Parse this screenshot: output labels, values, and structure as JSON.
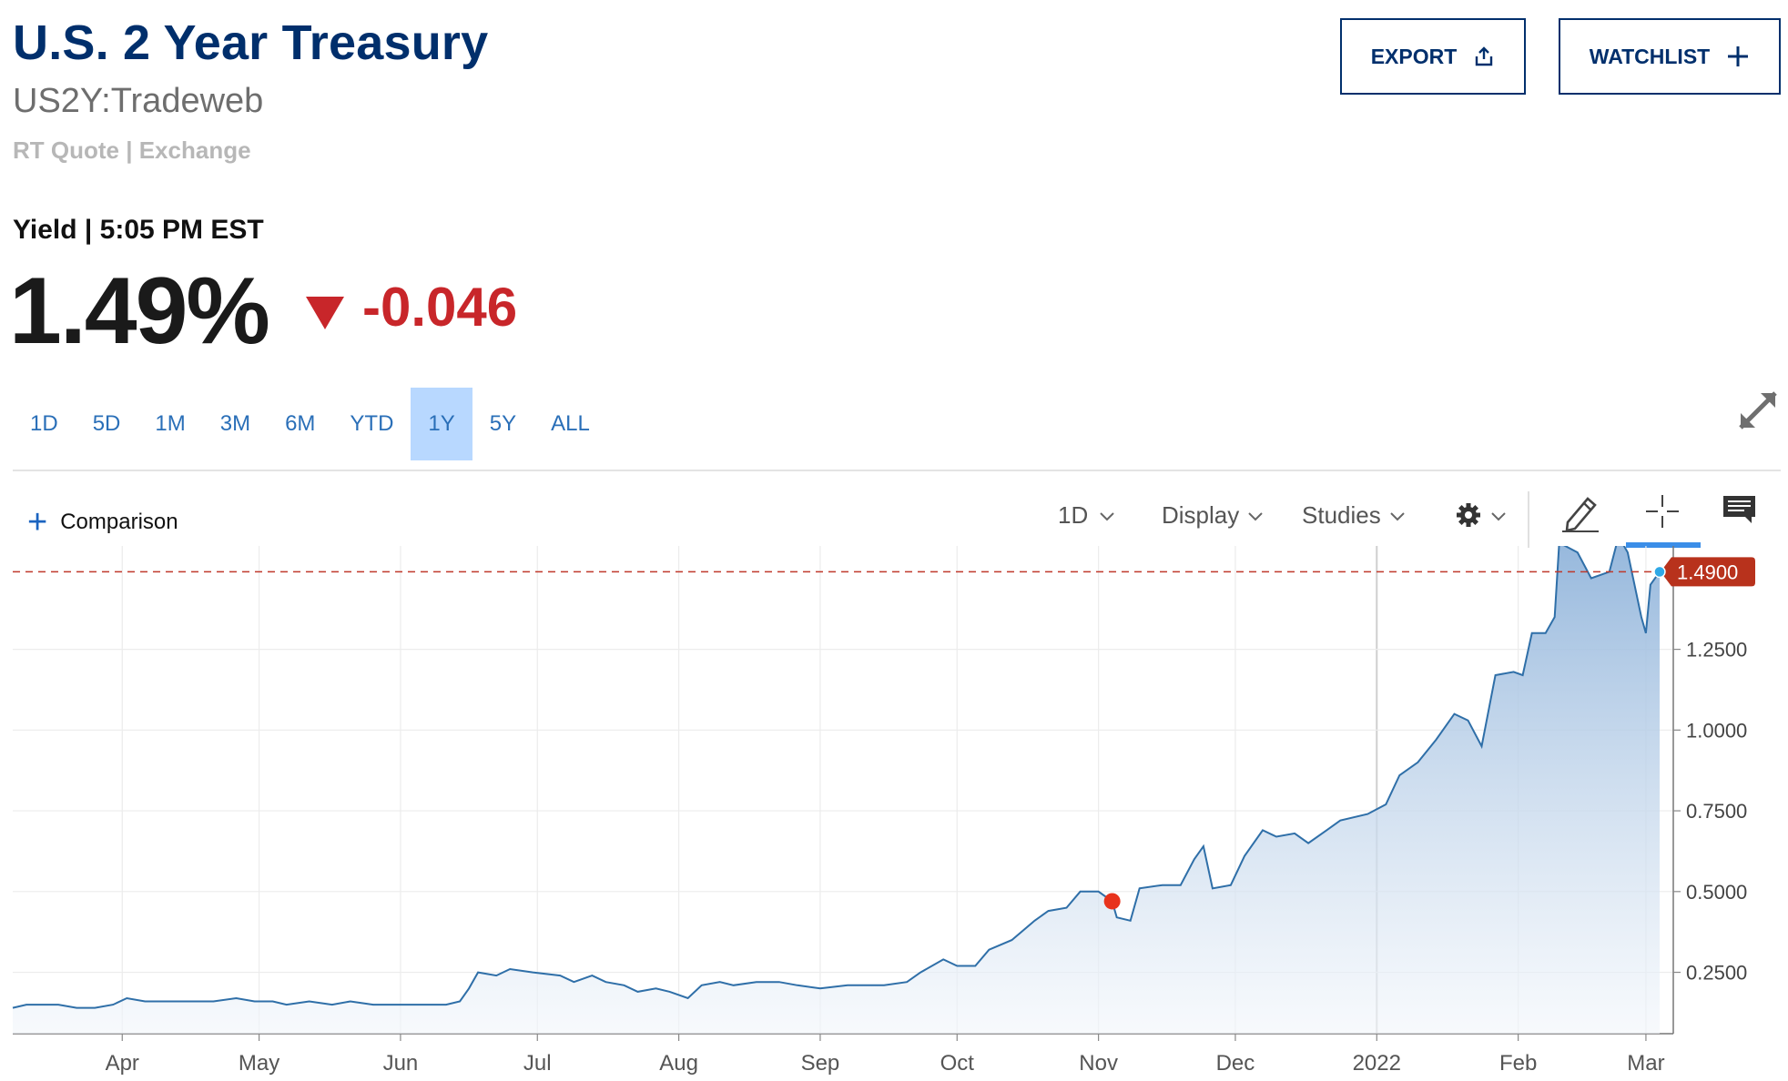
{
  "header": {
    "title": "U.S. 2 Year Treasury",
    "symbol": "US2Y:Tradeweb",
    "quote_source": "RT Quote | Exchange",
    "export_label": "EXPORT",
    "watchlist_label": "WATCHLIST"
  },
  "quote": {
    "label": "Yield | 5:05 PM EST",
    "value": "1.49%",
    "change": "-0.046"
  },
  "ranges": [
    "1D",
    "5D",
    "1M",
    "3M",
    "6M",
    "YTD",
    "1Y",
    "5Y",
    "ALL"
  ],
  "active_range": "1Y",
  "toolbar": {
    "comparison_label": "Comparison",
    "interval_label": "1D",
    "display_label": "Display",
    "studies_label": "Studies"
  },
  "colors": {
    "brand": "#002f6c",
    "negative": "#c8262a",
    "line": "#2f6fa8",
    "link": "#2a6fb8"
  },
  "chart_data": {
    "type": "area",
    "title": "",
    "xlabel": "",
    "ylabel": "",
    "x_ticks": [
      "Apr",
      "May",
      "Jun",
      "Jul",
      "Aug",
      "Sep",
      "Oct",
      "Nov",
      "Dec",
      "2022",
      "Feb",
      "Mar"
    ],
    "y_ticks": [
      "0.2500",
      "0.5000",
      "0.7500",
      "1.0000",
      "1.2500"
    ],
    "ylim": [
      0.06,
      1.57
    ],
    "grid": true,
    "last_value_label": "1.4900",
    "last_value": 1.49,
    "event_marker": {
      "x": "2021-11-04",
      "y": 0.47
    },
    "series": [
      {
        "points": [
          [
            "2021-03-08",
            0.14
          ],
          [
            "2021-03-11",
            0.15
          ],
          [
            "2021-03-15",
            0.15
          ],
          [
            "2021-03-18",
            0.15
          ],
          [
            "2021-03-22",
            0.14
          ],
          [
            "2021-03-26",
            0.14
          ],
          [
            "2021-03-30",
            0.15
          ],
          [
            "2021-04-02",
            0.17
          ],
          [
            "2021-04-06",
            0.16
          ],
          [
            "2021-04-09",
            0.16
          ],
          [
            "2021-04-14",
            0.16
          ],
          [
            "2021-04-16",
            0.16
          ],
          [
            "2021-04-21",
            0.16
          ],
          [
            "2021-04-26",
            0.17
          ],
          [
            "2021-04-30",
            0.16
          ],
          [
            "2021-05-04",
            0.16
          ],
          [
            "2021-05-07",
            0.15
          ],
          [
            "2021-05-12",
            0.16
          ],
          [
            "2021-05-17",
            0.15
          ],
          [
            "2021-05-21",
            0.16
          ],
          [
            "2021-05-26",
            0.15
          ],
          [
            "2021-06-01",
            0.15
          ],
          [
            "2021-06-07",
            0.15
          ],
          [
            "2021-06-11",
            0.15
          ],
          [
            "2021-06-14",
            0.16
          ],
          [
            "2021-06-16",
            0.2
          ],
          [
            "2021-06-18",
            0.25
          ],
          [
            "2021-06-22",
            0.24
          ],
          [
            "2021-06-25",
            0.26
          ],
          [
            "2021-06-30",
            0.25
          ],
          [
            "2021-07-06",
            0.24
          ],
          [
            "2021-07-09",
            0.22
          ],
          [
            "2021-07-13",
            0.24
          ],
          [
            "2021-07-16",
            0.22
          ],
          [
            "2021-07-20",
            0.21
          ],
          [
            "2021-07-23",
            0.19
          ],
          [
            "2021-07-27",
            0.2
          ],
          [
            "2021-07-30",
            0.19
          ],
          [
            "2021-08-03",
            0.17
          ],
          [
            "2021-08-06",
            0.21
          ],
          [
            "2021-08-10",
            0.22
          ],
          [
            "2021-08-13",
            0.21
          ],
          [
            "2021-08-18",
            0.22
          ],
          [
            "2021-08-23",
            0.22
          ],
          [
            "2021-08-27",
            0.21
          ],
          [
            "2021-09-01",
            0.2
          ],
          [
            "2021-09-07",
            0.21
          ],
          [
            "2021-09-10",
            0.21
          ],
          [
            "2021-09-15",
            0.21
          ],
          [
            "2021-09-20",
            0.22
          ],
          [
            "2021-09-23",
            0.25
          ],
          [
            "2021-09-28",
            0.29
          ],
          [
            "2021-10-01",
            0.27
          ],
          [
            "2021-10-05",
            0.27
          ],
          [
            "2021-10-08",
            0.32
          ],
          [
            "2021-10-13",
            0.35
          ],
          [
            "2021-10-18",
            0.41
          ],
          [
            "2021-10-21",
            0.44
          ],
          [
            "2021-10-25",
            0.45
          ],
          [
            "2021-10-28",
            0.5
          ],
          [
            "2021-11-01",
            0.5
          ],
          [
            "2021-11-04",
            0.47
          ],
          [
            "2021-11-05",
            0.42
          ],
          [
            "2021-11-08",
            0.41
          ],
          [
            "2021-11-10",
            0.51
          ],
          [
            "2021-11-15",
            0.52
          ],
          [
            "2021-11-19",
            0.52
          ],
          [
            "2021-11-22",
            0.6
          ],
          [
            "2021-11-24",
            0.64
          ],
          [
            "2021-11-26",
            0.51
          ],
          [
            "2021-11-30",
            0.52
          ],
          [
            "2021-12-03",
            0.61
          ],
          [
            "2021-12-07",
            0.69
          ],
          [
            "2021-12-10",
            0.67
          ],
          [
            "2021-12-14",
            0.68
          ],
          [
            "2021-12-17",
            0.65
          ],
          [
            "2021-12-21",
            0.69
          ],
          [
            "2021-12-24",
            0.72
          ],
          [
            "2021-12-30",
            0.74
          ],
          [
            "2022-01-03",
            0.77
          ],
          [
            "2022-01-06",
            0.86
          ],
          [
            "2022-01-10",
            0.9
          ],
          [
            "2022-01-14",
            0.97
          ],
          [
            "2022-01-18",
            1.05
          ],
          [
            "2022-01-21",
            1.03
          ],
          [
            "2022-01-24",
            0.95
          ],
          [
            "2022-01-27",
            1.17
          ],
          [
            "2022-01-31",
            1.18
          ],
          [
            "2022-02-02",
            1.17
          ],
          [
            "2022-02-04",
            1.3
          ],
          [
            "2022-02-07",
            1.3
          ],
          [
            "2022-02-09",
            1.35
          ],
          [
            "2022-02-10",
            1.58
          ],
          [
            "2022-02-14",
            1.55
          ],
          [
            "2022-02-17",
            1.47
          ],
          [
            "2022-02-21",
            1.49
          ],
          [
            "2022-02-23",
            1.6
          ],
          [
            "2022-02-25",
            1.55
          ],
          [
            "2022-02-28",
            1.35
          ],
          [
            "2022-03-01",
            1.3
          ],
          [
            "2022-03-02",
            1.45
          ],
          [
            "2022-03-04",
            1.49
          ]
        ]
      }
    ]
  }
}
